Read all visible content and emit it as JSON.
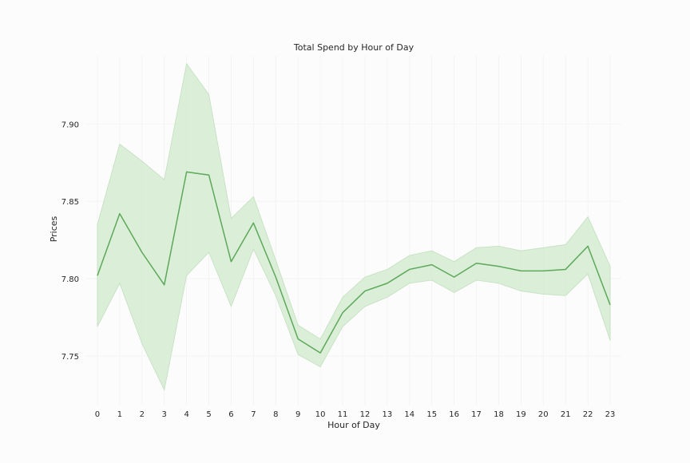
{
  "chart_data": {
    "type": "line",
    "title": "Total Spend by Hour of Day",
    "xlabel": "Hour of Day",
    "ylabel": "Prices",
    "x": [
      0,
      1,
      2,
      3,
      4,
      5,
      6,
      7,
      8,
      9,
      10,
      11,
      12,
      13,
      14,
      15,
      16,
      17,
      18,
      19,
      20,
      21,
      22,
      23
    ],
    "series": [
      {
        "values": [
          7.802,
          7.842,
          7.817,
          7.796,
          7.869,
          7.867,
          7.811,
          7.836,
          7.801,
          7.761,
          7.752,
          7.778,
          7.792,
          7.797,
          7.806,
          7.809,
          7.801,
          7.81,
          7.808,
          7.805,
          7.805,
          7.806,
          7.821,
          7.783
        ],
        "ci_lower": [
          7.769,
          7.797,
          7.758,
          7.728,
          7.802,
          7.817,
          7.782,
          7.819,
          7.789,
          7.751,
          7.743,
          7.769,
          7.782,
          7.788,
          7.797,
          7.799,
          7.791,
          7.799,
          7.797,
          7.792,
          7.79,
          7.789,
          7.803,
          7.76
        ],
        "ci_upper": [
          7.835,
          7.887,
          7.876,
          7.864,
          7.939,
          7.919,
          7.839,
          7.853,
          7.812,
          7.77,
          7.761,
          7.788,
          7.801,
          7.806,
          7.815,
          7.818,
          7.811,
          7.82,
          7.821,
          7.818,
          7.82,
          7.822,
          7.84,
          7.808
        ]
      }
    ],
    "y_ticks": [
      7.75,
      7.8,
      7.85,
      7.9
    ],
    "y_tick_labels": [
      "7.75",
      "7.80",
      "7.85",
      "7.90"
    ],
    "x_tick_labels": [
      "0",
      "1",
      "2",
      "3",
      "4",
      "5",
      "6",
      "7",
      "8",
      "9",
      "10",
      "11",
      "12",
      "13",
      "14",
      "15",
      "16",
      "17",
      "18",
      "19",
      "20",
      "21",
      "22",
      "23"
    ],
    "ylim": [
      7.718,
      7.944
    ],
    "xlim": [
      -0.5,
      23.5
    ],
    "grid": true,
    "colors": {
      "line": "#5da85a",
      "band": "#d4ebd1",
      "band_edge": "#c2e0be",
      "grid": "#f2f2f2",
      "text": "#262626"
    }
  }
}
